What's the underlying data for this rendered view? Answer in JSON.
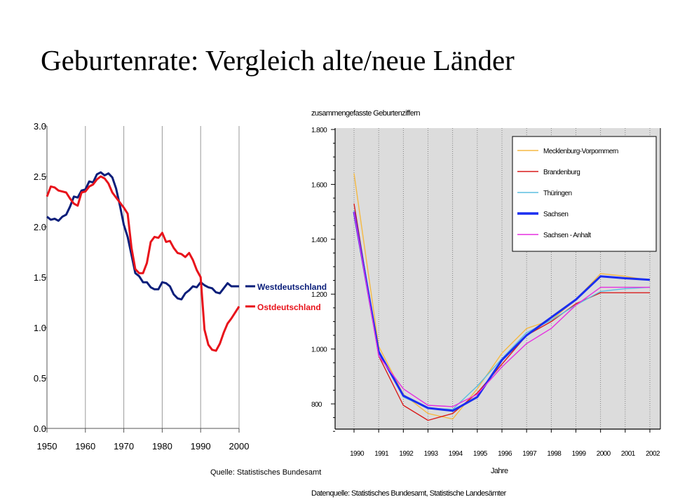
{
  "slide": {
    "title": "Geburtenrate: Vergleich alte/neue Länder",
    "source": "Quelle:  Statistisches Bundesamt"
  },
  "chart_data": [
    {
      "type": "line",
      "title": "",
      "xlabel": "",
      "ylabel": "",
      "xlim": [
        1950,
        2000
      ],
      "ylim": [
        0.0,
        3.0
      ],
      "x_ticks": [
        "1950",
        "1960",
        "1970",
        "1980",
        "1990",
        "2000"
      ],
      "y_ticks": [
        "0.0",
        "0.5",
        "1.0",
        "1.5",
        "2.0",
        "2.5",
        "3.0"
      ],
      "grid": "vertical",
      "series": [
        {
          "name": "Westdeutschland",
          "color": "#0a1e7a",
          "points": [
            [
              1950,
              2.1
            ],
            [
              1951,
              2.07
            ],
            [
              1952,
              2.08
            ],
            [
              1953,
              2.06
            ],
            [
              1954,
              2.1
            ],
            [
              1955,
              2.12
            ],
            [
              1956,
              2.2
            ],
            [
              1957,
              2.3
            ],
            [
              1958,
              2.29
            ],
            [
              1959,
              2.36
            ],
            [
              1960,
              2.37
            ],
            [
              1961,
              2.45
            ],
            [
              1962,
              2.44
            ],
            [
              1963,
              2.52
            ],
            [
              1964,
              2.54
            ],
            [
              1965,
              2.51
            ],
            [
              1966,
              2.53
            ],
            [
              1967,
              2.49
            ],
            [
              1968,
              2.38
            ],
            [
              1969,
              2.21
            ],
            [
              1970,
              2.02
            ],
            [
              1971,
              1.9
            ],
            [
              1972,
              1.72
            ],
            [
              1973,
              1.54
            ],
            [
              1974,
              1.51
            ],
            [
              1975,
              1.45
            ],
            [
              1976,
              1.45
            ],
            [
              1977,
              1.4
            ],
            [
              1978,
              1.38
            ],
            [
              1979,
              1.38
            ],
            [
              1980,
              1.45
            ],
            [
              1981,
              1.44
            ],
            [
              1982,
              1.41
            ],
            [
              1983,
              1.33
            ],
            [
              1984,
              1.29
            ],
            [
              1985,
              1.28
            ],
            [
              1986,
              1.34
            ],
            [
              1987,
              1.37
            ],
            [
              1988,
              1.41
            ],
            [
              1989,
              1.4
            ],
            [
              1990,
              1.45
            ],
            [
              1991,
              1.42
            ],
            [
              1992,
              1.4
            ],
            [
              1993,
              1.39
            ],
            [
              1994,
              1.35
            ],
            [
              1995,
              1.34
            ],
            [
              1996,
              1.39
            ],
            [
              1997,
              1.44
            ],
            [
              1998,
              1.41
            ],
            [
              1999,
              1.41
            ],
            [
              2000,
              1.41
            ]
          ]
        },
        {
          "name": "Ostdeutschland",
          "color": "#e8131b",
          "points": [
            [
              1950,
              2.3
            ],
            [
              1951,
              2.4
            ],
            [
              1952,
              2.39
            ],
            [
              1953,
              2.36
            ],
            [
              1954,
              2.35
            ],
            [
              1955,
              2.34
            ],
            [
              1956,
              2.28
            ],
            [
              1957,
              2.23
            ],
            [
              1958,
              2.21
            ],
            [
              1959,
              2.34
            ],
            [
              1960,
              2.35
            ],
            [
              1961,
              2.4
            ],
            [
              1962,
              2.42
            ],
            [
              1963,
              2.47
            ],
            [
              1964,
              2.5
            ],
            [
              1965,
              2.48
            ],
            [
              1966,
              2.43
            ],
            [
              1967,
              2.34
            ],
            [
              1968,
              2.29
            ],
            [
              1969,
              2.24
            ],
            [
              1970,
              2.19
            ],
            [
              1971,
              2.13
            ],
            [
              1972,
              1.79
            ],
            [
              1973,
              1.58
            ],
            [
              1974,
              1.54
            ],
            [
              1975,
              1.54
            ],
            [
              1976,
              1.64
            ],
            [
              1977,
              1.85
            ],
            [
              1978,
              1.9
            ],
            [
              1979,
              1.89
            ],
            [
              1980,
              1.94
            ],
            [
              1981,
              1.85
            ],
            [
              1982,
              1.86
            ],
            [
              1983,
              1.79
            ],
            [
              1984,
              1.74
            ],
            [
              1985,
              1.73
            ],
            [
              1986,
              1.7
            ],
            [
              1987,
              1.74
            ],
            [
              1988,
              1.67
            ],
            [
              1989,
              1.57
            ],
            [
              1990,
              1.5
            ],
            [
              1991,
              0.98
            ],
            [
              1992,
              0.83
            ],
            [
              1993,
              0.78
            ],
            [
              1994,
              0.77
            ],
            [
              1995,
              0.84
            ],
            [
              1996,
              0.95
            ],
            [
              1997,
              1.04
            ],
            [
              1998,
              1.09
            ],
            [
              1999,
              1.15
            ],
            [
              2000,
              1.21
            ]
          ]
        }
      ]
    },
    {
      "type": "line",
      "title": "zusammengefasste Geburtenziffern",
      "xlabel": "Jahre",
      "ylabel": "",
      "xlim": [
        1990,
        2002
      ],
      "ylim": [
        700,
        1800
      ],
      "categories": [
        "1990",
        "1991",
        "1992",
        "1993",
        "1994",
        "1995",
        "1996",
        "1997",
        "1998",
        "1999",
        "2000",
        "2001",
        "2002"
      ],
      "y_ticks": [
        "1.800",
        "1.600",
        "1.400",
        "1.200",
        "1.000",
        "800"
      ],
      "grid": "vertical dotted",
      "legend": "top-right",
      "source": "Datenquelle: Statistisches Bundesamt, Statistische Landesämter",
      "series": [
        {
          "name": "Mecklenburg-Vorpommern",
          "color": "#f5b942",
          "values": [
            1640,
            1010,
            835,
            765,
            745,
            855,
            985,
            1075,
            1105,
            1180,
            1275,
            1265,
            1250
          ]
        },
        {
          "name": "Brandenburg",
          "color": "#d91c1c",
          "values": [
            1530,
            975,
            795,
            740,
            765,
            840,
            945,
            1050,
            1100,
            1165,
            1205,
            1205,
            1205
          ]
        },
        {
          "name": "Thüringen",
          "color": "#5bbde0",
          "values": [
            1505,
            990,
            825,
            785,
            780,
            865,
            965,
            1060,
            1105,
            1160,
            1210,
            1220,
            1225
          ]
        },
        {
          "name": "Sachsen",
          "color": "#1a2ef0",
          "values": [
            1500,
            990,
            830,
            785,
            775,
            825,
            960,
            1050,
            1115,
            1180,
            1265,
            1258,
            1252
          ]
        },
        {
          "name": "Sachsen - Anhalt",
          "color": "#e62fe0",
          "values": [
            1500,
            975,
            855,
            795,
            790,
            835,
            935,
            1020,
            1075,
            1160,
            1225,
            1225,
            1225
          ]
        }
      ]
    }
  ]
}
